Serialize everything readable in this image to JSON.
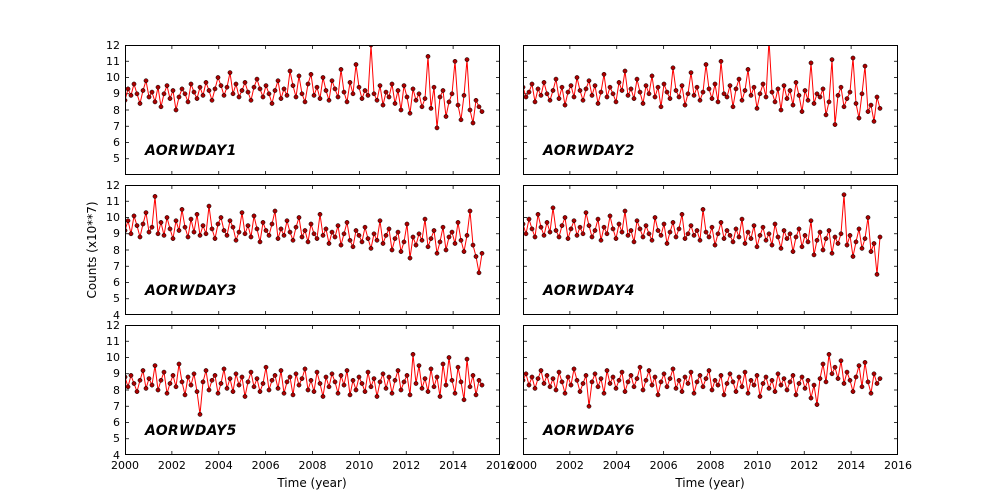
{
  "chart_data": {
    "type": "line",
    "title": "",
    "xlabel": "Time (year)",
    "ylabel": "Counts (x10**7)",
    "layout": "3 rows x 2 columns, shared axes, grid off, no legend",
    "xlim": [
      2000,
      2016
    ],
    "x_tick_labels": [
      "2000",
      "2002",
      "2004",
      "2006",
      "2008",
      "2010",
      "2012",
      "2014",
      "2016"
    ],
    "rows": [
      {
        "y_tick_labels": [
          "12",
          "11",
          "10",
          "9",
          "8",
          "7",
          "6",
          "5"
        ]
      },
      {
        "y_tick_labels": [
          "12",
          "11",
          "10",
          "9",
          "8",
          "7",
          "6",
          "5",
          "4"
        ]
      },
      {
        "y_tick_labels": [
          "12",
          "11",
          "10",
          "9",
          "8",
          "7",
          "6",
          "5",
          "4"
        ]
      }
    ],
    "line_color": "#ff0000",
    "marker_fill": "#aa0000",
    "marker_edge": "#000000",
    "frame_color": "#000000",
    "panels": [
      {
        "label": "AORWDAY1",
        "ylim": [
          4,
          12
        ],
        "x_start": 2000.0,
        "x_step": 0.128,
        "values": [
          8.6,
          9.3,
          8.9,
          9.6,
          9.0,
          8.4,
          9.2,
          9.8,
          8.8,
          9.1,
          8.5,
          9.4,
          8.2,
          9.0,
          9.5,
          8.7,
          9.2,
          8.0,
          8.8,
          9.3,
          9.0,
          8.5,
          9.6,
          9.1,
          8.7,
          9.4,
          8.9,
          9.7,
          9.2,
          8.6,
          9.3,
          10.0,
          9.5,
          8.9,
          9.4,
          10.3,
          9.0,
          9.6,
          8.8,
          9.2,
          9.7,
          9.1,
          8.6,
          9.4,
          9.9,
          9.3,
          8.8,
          9.5,
          9.0,
          8.4,
          9.2,
          9.8,
          8.7,
          9.3,
          8.9,
          10.4,
          9.5,
          8.8,
          10.1,
          9.0,
          8.5,
          9.6,
          10.2,
          8.9,
          9.4,
          8.7,
          10.0,
          9.2,
          8.6,
          9.8,
          9.3,
          8.8,
          10.5,
          9.1,
          8.5,
          9.7,
          9.0,
          10.8,
          9.4,
          8.7,
          9.2,
          8.9,
          12.0,
          9.0,
          8.6,
          9.5,
          8.3,
          9.1,
          8.8,
          9.6,
          8.4,
          9.2,
          8.0,
          9.5,
          8.8,
          7.8,
          9.3,
          8.6,
          9.0,
          8.2,
          8.7,
          11.3,
          8.1,
          9.4,
          6.9,
          8.8,
          9.2,
          7.6,
          8.5,
          9.0,
          11.0,
          8.3,
          7.4,
          8.9,
          11.1,
          8.0,
          7.2,
          8.6,
          8.2,
          7.9
        ]
      },
      {
        "label": "AORWDAY2",
        "ylim": [
          4,
          12
        ],
        "x_start": 2000.0,
        "x_step": 0.128,
        "values": [
          9.4,
          8.8,
          9.1,
          9.6,
          8.5,
          9.3,
          8.9,
          9.7,
          9.0,
          8.6,
          9.2,
          9.9,
          8.7,
          9.4,
          8.3,
          9.1,
          9.5,
          8.8,
          10.0,
          9.2,
          8.6,
          9.3,
          9.8,
          8.9,
          9.5,
          8.4,
          9.1,
          10.2,
          8.8,
          9.4,
          9.0,
          8.5,
          9.7,
          9.2,
          10.4,
          8.9,
          9.3,
          8.7,
          9.9,
          9.1,
          8.4,
          9.5,
          9.0,
          10.1,
          8.8,
          9.4,
          8.2,
          9.6,
          9.1,
          8.7,
          10.6,
          9.2,
          8.8,
          9.5,
          8.3,
          9.0,
          10.3,
          8.9,
          9.4,
          8.6,
          9.1,
          10.8,
          9.3,
          8.7,
          9.6,
          8.5,
          11.0,
          9.0,
          8.8,
          9.5,
          8.2,
          9.3,
          9.9,
          8.6,
          9.2,
          10.5,
          8.9,
          9.4,
          8.1,
          9.0,
          9.6,
          8.8,
          12.3,
          9.1,
          8.5,
          9.3,
          8.0,
          9.5,
          8.7,
          9.2,
          8.3,
          9.7,
          8.9,
          7.9,
          9.2,
          8.6,
          10.9,
          8.4,
          9.0,
          8.8,
          9.3,
          7.7,
          8.5,
          11.1,
          7.1,
          8.9,
          9.4,
          8.2,
          8.7,
          9.1,
          11.2,
          8.4,
          7.5,
          9.0,
          10.7,
          7.9,
          8.3,
          7.3,
          8.8,
          8.1
        ]
      },
      {
        "label": "AORWDAY3",
        "ylim": [
          4,
          12
        ],
        "x_start": 2000.0,
        "x_step": 0.128,
        "values": [
          9.2,
          9.8,
          9.0,
          10.1,
          9.5,
          8.8,
          9.6,
          10.3,
          9.1,
          9.4,
          11.3,
          9.0,
          9.7,
          8.9,
          10.0,
          9.3,
          8.7,
          9.8,
          9.2,
          10.5,
          9.4,
          8.8,
          9.9,
          9.1,
          10.2,
          8.9,
          9.5,
          9.0,
          10.7,
          9.3,
          8.7,
          9.6,
          10.0,
          9.2,
          8.9,
          9.8,
          9.4,
          8.6,
          9.1,
          10.3,
          9.0,
          9.5,
          8.8,
          10.1,
          9.3,
          8.5,
          9.7,
          9.2,
          8.9,
          9.6,
          10.4,
          8.7,
          9.3,
          8.9,
          9.8,
          9.1,
          8.6,
          9.4,
          10.0,
          8.8,
          9.2,
          8.5,
          9.6,
          9.0,
          8.7,
          10.2,
          8.9,
          9.3,
          8.4,
          9.1,
          8.8,
          9.5,
          8.3,
          9.0,
          9.7,
          8.6,
          8.2,
          9.2,
          8.9,
          8.5,
          9.4,
          8.7,
          8.1,
          9.0,
          8.6,
          9.8,
          8.4,
          8.9,
          9.3,
          8.0,
          8.7,
          9.1,
          7.9,
          8.5,
          9.6,
          7.5,
          8.8,
          8.3,
          9.0,
          8.6,
          9.9,
          8.2,
          8.7,
          9.2,
          7.8,
          8.5,
          9.4,
          8.0,
          8.8,
          9.1,
          8.4,
          9.7,
          8.6,
          7.9,
          8.9,
          10.4,
          8.3,
          7.6,
          6.6,
          7.8
        ]
      },
      {
        "label": "AORWDAY4",
        "ylim": [
          4,
          12
        ],
        "x_start": 2000.0,
        "x_step": 0.128,
        "values": [
          9.6,
          9.0,
          9.9,
          9.3,
          8.8,
          10.2,
          9.4,
          8.9,
          9.7,
          9.1,
          10.6,
          9.2,
          8.8,
          9.5,
          10.0,
          8.7,
          9.3,
          9.8,
          8.9,
          9.4,
          9.0,
          10.3,
          9.5,
          8.8,
          9.2,
          9.9,
          8.6,
          9.4,
          9.0,
          10.1,
          9.3,
          8.7,
          9.6,
          9.1,
          10.4,
          8.9,
          9.2,
          8.5,
          9.8,
          9.3,
          8.8,
          9.5,
          9.0,
          8.6,
          10.0,
          9.2,
          8.9,
          9.6,
          8.4,
          9.1,
          9.7,
          8.8,
          9.3,
          10.2,
          8.7,
          9.0,
          9.5,
          8.9,
          9.2,
          8.6,
          10.5,
          9.1,
          8.8,
          9.4,
          8.3,
          9.0,
          9.7,
          8.7,
          9.2,
          8.9,
          8.5,
          9.3,
          8.8,
          9.9,
          8.4,
          9.1,
          8.7,
          9.5,
          8.2,
          8.9,
          9.4,
          8.6,
          9.0,
          8.3,
          9.6,
          8.8,
          8.1,
          9.2,
          8.7,
          9.0,
          7.9,
          8.8,
          9.3,
          8.2,
          8.9,
          8.5,
          9.8,
          7.7,
          8.6,
          9.1,
          8.0,
          8.7,
          9.2,
          7.8,
          8.8,
          8.4,
          9.0,
          11.4,
          8.3,
          8.9,
          7.6,
          8.5,
          9.3,
          8.1,
          8.7,
          10.0,
          7.9,
          8.4,
          6.5,
          8.8
        ]
      },
      {
        "label": "AORWDAY5",
        "ylim": [
          4,
          12
        ],
        "x_start": 2000.0,
        "x_step": 0.128,
        "values": [
          8.8,
          8.2,
          8.9,
          8.4,
          7.9,
          8.6,
          9.2,
          8.1,
          8.7,
          8.3,
          9.5,
          8.0,
          8.6,
          9.1,
          7.8,
          8.4,
          8.9,
          8.2,
          9.6,
          8.5,
          7.7,
          8.8,
          8.3,
          9.0,
          7.9,
          6.5,
          8.5,
          9.2,
          8.0,
          8.6,
          8.9,
          7.8,
          8.4,
          9.3,
          8.1,
          8.7,
          7.9,
          9.0,
          8.3,
          8.8,
          7.6,
          8.5,
          9.1,
          8.2,
          8.7,
          7.9,
          8.4,
          9.4,
          8.0,
          8.6,
          8.9,
          8.1,
          9.2,
          7.8,
          8.5,
          8.8,
          7.7,
          9.0,
          8.3,
          8.7,
          9.3,
          8.0,
          8.6,
          7.9,
          9.1,
          8.4,
          7.6,
          8.8,
          8.2,
          9.0,
          8.5,
          7.8,
          8.9,
          8.3,
          9.2,
          7.7,
          8.6,
          8.0,
          8.8,
          8.4,
          7.9,
          9.1,
          8.2,
          8.7,
          7.6,
          8.5,
          9.0,
          8.1,
          8.8,
          7.8,
          8.6,
          9.2,
          8.0,
          8.5,
          8.9,
          7.7,
          10.2,
          8.4,
          9.5,
          8.1,
          8.7,
          7.9,
          9.3,
          8.2,
          8.8,
          7.6,
          9.6,
          8.3,
          10.0,
          8.6,
          7.8,
          9.4,
          8.5,
          7.4,
          9.9,
          8.2,
          8.9,
          7.7,
          8.6,
          8.3
        ]
      },
      {
        "label": "AORWDAY6",
        "ylim": [
          4,
          12
        ],
        "x_start": 2000.0,
        "x_step": 0.128,
        "values": [
          8.6,
          9.0,
          8.3,
          8.8,
          8.1,
          8.7,
          9.2,
          8.4,
          8.9,
          8.2,
          8.7,
          8.0,
          9.1,
          8.5,
          7.8,
          8.8,
          8.3,
          9.3,
          8.6,
          7.9,
          8.4,
          8.9,
          7.0,
          8.5,
          9.0,
          8.2,
          8.7,
          7.8,
          9.2,
          8.4,
          8.8,
          8.1,
          8.6,
          9.1,
          7.9,
          8.5,
          8.9,
          8.2,
          8.7,
          9.4,
          8.0,
          8.6,
          9.2,
          8.3,
          8.8,
          7.7,
          8.5,
          9.0,
          8.2,
          8.7,
          9.3,
          8.1,
          8.6,
          7.9,
          8.8,
          8.4,
          9.1,
          7.8,
          8.5,
          8.9,
          8.2,
          8.7,
          9.2,
          8.0,
          8.6,
          8.3,
          8.9,
          7.7,
          8.4,
          9.0,
          8.5,
          7.9,
          8.8,
          8.2,
          9.1,
          7.8,
          8.6,
          8.3,
          8.9,
          7.6,
          8.4,
          8.8,
          8.1,
          8.6,
          7.9,
          9.0,
          8.3,
          8.7,
          8.0,
          8.5,
          8.9,
          7.7,
          8.4,
          8.8,
          8.1,
          8.6,
          7.5,
          8.3,
          7.1,
          8.7,
          9.6,
          8.5,
          10.2,
          9.0,
          9.4,
          8.7,
          9.8,
          8.4,
          9.1,
          8.6,
          7.9,
          8.8,
          9.5,
          8.2,
          9.7,
          8.5,
          7.8,
          9.0,
          8.4,
          8.7
        ]
      }
    ]
  }
}
